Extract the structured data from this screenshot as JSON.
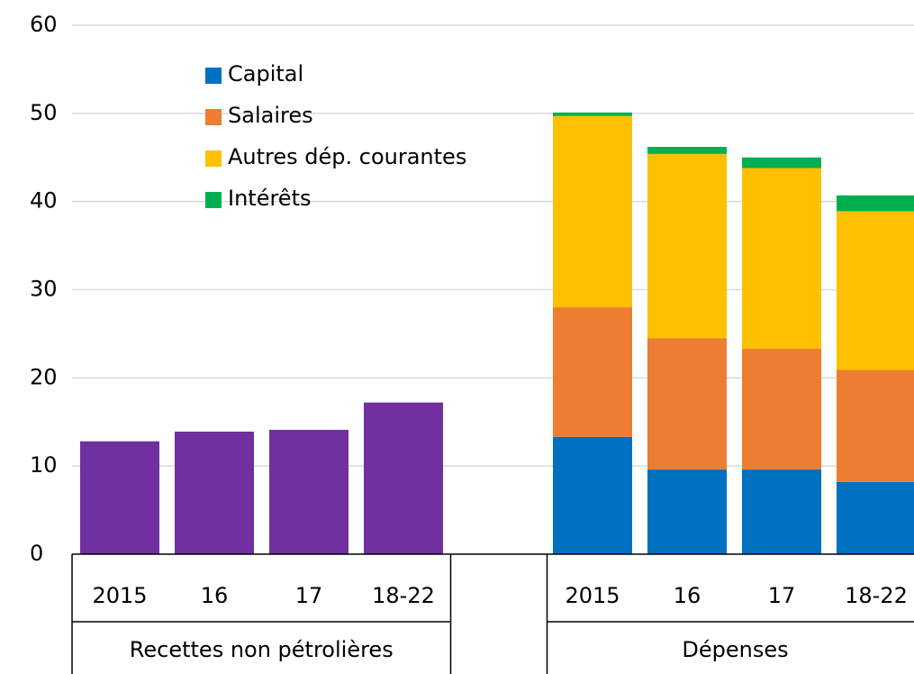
{
  "chart_data": {
    "type": "stacked_bar",
    "ylim": [
      0,
      60
    ],
    "yticks": [
      0,
      10,
      20,
      30,
      40,
      50,
      60
    ],
    "grid": true,
    "groups": [
      {
        "name": "Recettes non pétrolières",
        "categories": [
          "2015",
          "16",
          "17",
          "18-22"
        ],
        "series": [
          {
            "color": "#7030a0",
            "values": [
              12.8,
              13.9,
              14.1,
              17.2
            ]
          }
        ]
      },
      {
        "name": "Dépenses",
        "categories": [
          "2015",
          "16",
          "17",
          "18-22"
        ],
        "series": [
          {
            "name": "Capital",
            "color": "#0070c0",
            "values": [
              13.3,
              9.6,
              9.6,
              8.2
            ]
          },
          {
            "name": "Salaires",
            "color": "#ed7d31",
            "values": [
              14.7,
              14.9,
              13.7,
              12.7
            ]
          },
          {
            "name": "Autres dép. courantes",
            "color": "#ffc000",
            "values": [
              21.7,
              20.9,
              20.5,
              18.0
            ]
          },
          {
            "name": "Intérêts",
            "color": "#00b050",
            "values": [
              0.4,
              0.8,
              1.2,
              1.8
            ]
          }
        ]
      }
    ]
  }
}
